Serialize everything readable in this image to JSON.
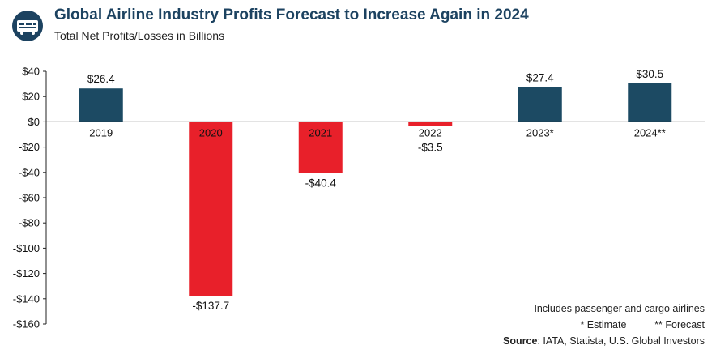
{
  "header": {
    "title": "Global Airline Industry Profits Forecast to Increase Again in 2024",
    "subtitle": "Total Net Profits/Losses in Billions"
  },
  "notes": {
    "line1": "Includes passenger and cargo airlines",
    "estimate": "* Estimate",
    "forecast": "** Forecast",
    "source_label": "Source",
    "source_text": ": IATA, Statista, U.S. Global Investors"
  },
  "colors": {
    "positive": "#1c4a63",
    "negative": "#e8202a",
    "title": "#1c4260"
  },
  "chart_data": {
    "type": "bar",
    "categories": [
      "2019",
      "2020",
      "2021",
      "2022",
      "2023*",
      "2024**"
    ],
    "values": [
      26.4,
      -137.7,
      -40.4,
      -3.5,
      27.4,
      30.5
    ],
    "data_labels": [
      "$26.4",
      "-$137.7",
      "-$40.4",
      "-$3.5",
      "$27.4",
      "$30.5"
    ],
    "ylim": [
      -160,
      40
    ],
    "yticks": [
      40,
      20,
      0,
      -20,
      -40,
      -60,
      -80,
      -100,
      -120,
      -140,
      -160
    ],
    "ytick_labels": [
      "$40",
      "$20",
      "$0",
      "-$20",
      "-$40",
      "-$60",
      "-$80",
      "-$100",
      "-$120",
      "-$140",
      "-$160"
    ],
    "grid": false,
    "title": "Global Airline Industry Profits Forecast to Increase Again in 2024",
    "subtitle": "Total Net Profits/Losses in Billions",
    "xlabel": "",
    "ylabel": ""
  }
}
